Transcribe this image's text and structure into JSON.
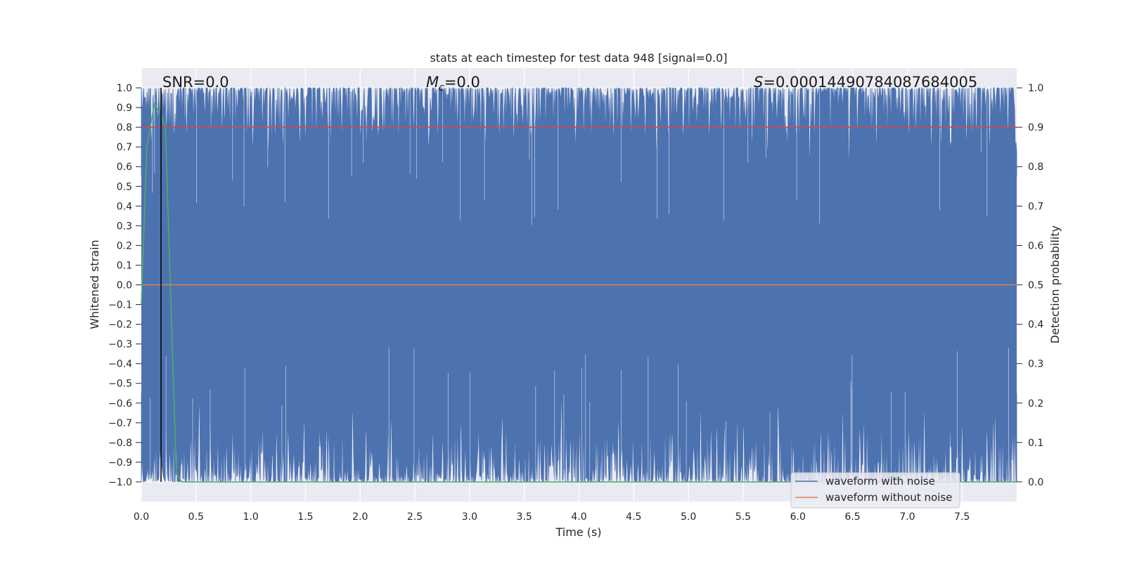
{
  "chart_data": {
    "type": "line",
    "title": "stats at each timestep for test data 948 [signal=0.0]",
    "xlabel": "Time (s)",
    "ylabel": "Whitened strain",
    "y2label": "Detection probability",
    "xlim": [
      0.0,
      8.0
    ],
    "ylim": [
      -1.1,
      1.1
    ],
    "y2lim": [
      -0.05,
      1.05
    ],
    "x_ticks": [
      "0.0",
      "0.5",
      "1.0",
      "1.5",
      "2.0",
      "2.5",
      "3.0",
      "3.5",
      "4.0",
      "4.5",
      "5.0",
      "5.5",
      "6.0",
      "6.5",
      "7.0",
      "7.5"
    ],
    "y_ticks": [
      "1.0",
      "0.9",
      "0.8",
      "0.7",
      "0.6",
      "0.5",
      "0.4",
      "0.3",
      "0.2",
      "0.1",
      "0.0",
      "−0.1",
      "−0.2",
      "−0.3",
      "−0.4",
      "−0.5",
      "−0.6",
      "−0.7",
      "−0.8",
      "−0.9",
      "−1.0"
    ],
    "y2_ticks": [
      "1.0",
      "0.9",
      "0.8",
      "0.7",
      "0.6",
      "0.5",
      "0.4",
      "0.3",
      "0.2",
      "0.1",
      "0.0"
    ],
    "grid": true,
    "legend_position": "lower-right",
    "annotations": {
      "snr": "SNR=0.0",
      "mc_symbol": "M",
      "mc_sub": "c",
      "mc_value": "=0.0",
      "s_symbol": "S",
      "s_value": "=0.00014490784087684005"
    },
    "series": [
      {
        "name": "waveform with noise",
        "color": "#4c72b0",
        "axis": "left",
        "style": "dense noise band spanning -1.0 to 1.0"
      },
      {
        "name": "waveform without noise",
        "color": "#dd8452",
        "axis": "left",
        "x": [
          0.0,
          8.0
        ],
        "y": [
          0.0,
          0.0
        ]
      },
      {
        "color": "#55a868",
        "axis": "right",
        "x": [
          0.0,
          0.05,
          0.12,
          0.18,
          0.22,
          0.32,
          0.37,
          0.42,
          8.0
        ],
        "y": [
          0.45,
          0.85,
          0.96,
          0.93,
          0.9,
          0.02,
          0.0,
          0.0,
          0.0
        ]
      },
      {
        "color": "#c44e52",
        "axis": "right",
        "x": [
          0.0,
          8.0
        ],
        "y": [
          0.9,
          0.9
        ]
      },
      {
        "color": "#000000",
        "axis": "left",
        "type": "vline",
        "x": [
          0.18,
          0.18
        ],
        "y": [
          -1.0,
          1.0
        ]
      }
    ]
  }
}
